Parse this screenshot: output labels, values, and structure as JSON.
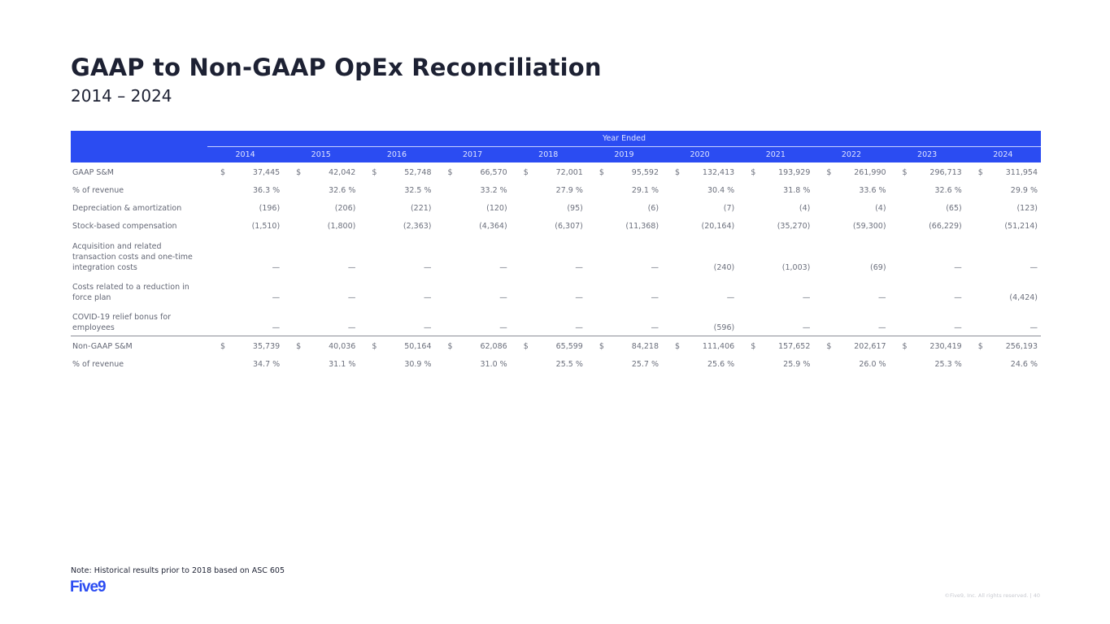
{
  "title": "GAAP to Non-GAAP OpEx Reconciliation",
  "subtitle": "2014 – 2024",
  "table": {
    "group_header": "Year Ended",
    "years": [
      "2014",
      "2015",
      "2016",
      "2017",
      "2018",
      "2019",
      "2020",
      "2021",
      "2022",
      "2023",
      "2024"
    ],
    "rows": [
      {
        "label": "GAAP S&M",
        "currency": "$",
        "values": [
          "37,445",
          "42,042",
          "52,748",
          "66,570",
          "72,001",
          "95,592",
          "132,413",
          "193,929",
          "261,990",
          "296,713",
          "311,954"
        ]
      },
      {
        "label": "% of revenue",
        "values": [
          "36.3 %",
          "32.6 %",
          "32.5 %",
          "33.2 %",
          "27.9 %",
          "29.1 %",
          "30.4 %",
          "31.8 %",
          "33.6 %",
          "32.6 %",
          "29.9 %"
        ]
      },
      {
        "label": "Depreciation & amortization",
        "values": [
          "(196)",
          "(206)",
          "(221)",
          "(120)",
          "(95)",
          "(6)",
          "(7)",
          "(4)",
          "(4)",
          "(65)",
          "(123)"
        ]
      },
      {
        "label": "Stock-based compensation",
        "values": [
          "(1,510)",
          "(1,800)",
          "(2,363)",
          "(4,364)",
          "(6,307)",
          "(11,368)",
          "(20,164)",
          "(35,270)",
          "(59,300)",
          "(66,229)",
          "(51,214)"
        ]
      },
      {
        "label": "Acquisition and related transaction costs and one-time integration costs",
        "values": [
          "—",
          "—",
          "—",
          "—",
          "—",
          "—",
          "(240)",
          "(1,003)",
          "(69)",
          "—",
          "—"
        ]
      },
      {
        "label": "Costs related to a reduction in force plan",
        "values": [
          "—",
          "—",
          "—",
          "—",
          "—",
          "—",
          "—",
          "—",
          "—",
          "—",
          "(4,424)"
        ]
      },
      {
        "label": "COVID-19 relief bonus for employees",
        "values": [
          "—",
          "—",
          "—",
          "—",
          "—",
          "—",
          "(596)",
          "—",
          "—",
          "—",
          "—"
        ]
      },
      {
        "label": "Non-GAAP S&M",
        "currency": "$",
        "values": [
          "35,739",
          "40,036",
          "50,164",
          "62,086",
          "65,599",
          "84,218",
          "111,406",
          "157,652",
          "202,617",
          "230,419",
          "256,193"
        ]
      },
      {
        "label": "% of revenue",
        "values": [
          "34.7 %",
          "31.1 %",
          "30.9 %",
          "31.0 %",
          "25.5 %",
          "25.7 %",
          "25.6 %",
          "25.9 %",
          "26.0 %",
          "25.3 %",
          "24.6 %"
        ]
      }
    ]
  },
  "note": "Note: Historical results prior to 2018 based on ASC 605",
  "logo": "Five9",
  "copyright": "©Five9, Inc. All rights reserved. | 40",
  "colors": {
    "accent": "#2b4cf2",
    "text": "#6b6f7c",
    "title": "#1d2133"
  }
}
